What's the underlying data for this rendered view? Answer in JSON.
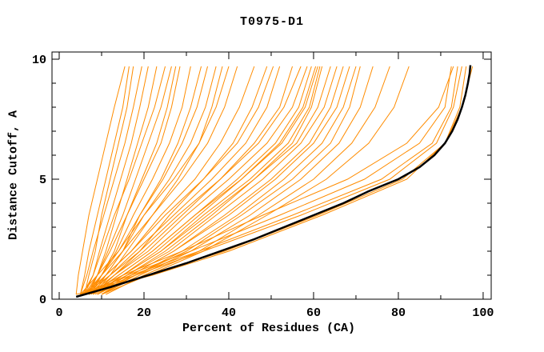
{
  "chart_data": {
    "type": "line",
    "title": "T0975-D1",
    "xlabel": "Percent of Residues (CA)",
    "ylabel": "Distance Cutoff, A",
    "xlim": [
      -1.7,
      101.9
    ],
    "ylim": [
      0,
      10.3
    ],
    "grid": false,
    "legend": false,
    "xticks": {
      "major": [
        0,
        20,
        40,
        60,
        80,
        100
      ],
      "minor": [
        10,
        30,
        50,
        70,
        90
      ]
    },
    "yticks": {
      "major": [
        0,
        5,
        10
      ],
      "minor": [
        1,
        2,
        3,
        4,
        6,
        7,
        8,
        9
      ]
    },
    "colors": {
      "models": "#ff8c00",
      "best_model": "#000000"
    },
    "best_model_points": [
      [
        4,
        0.1
      ],
      [
        12,
        0.5
      ],
      [
        21,
        1
      ],
      [
        30,
        1.5
      ],
      [
        38,
        2
      ],
      [
        46,
        2.5
      ],
      [
        53,
        3
      ],
      [
        60,
        3.5
      ],
      [
        67,
        4
      ],
      [
        73,
        4.5
      ],
      [
        80,
        5
      ],
      [
        85,
        5.5
      ],
      [
        88.5,
        6
      ],
      [
        91,
        6.5
      ],
      [
        92.7,
        7
      ],
      [
        94,
        7.5
      ],
      [
        95,
        8
      ],
      [
        95.8,
        8.5
      ],
      [
        96.4,
        9
      ],
      [
        96.8,
        9.4
      ],
      [
        97,
        9.75
      ]
    ],
    "dist_grid": [
      0.2,
      1,
      2,
      3.5,
      5,
      6.5,
      8,
      9.7
    ],
    "models_pct": [
      [
        4,
        4.5,
        5.5,
        7,
        9,
        11,
        13,
        15.5
      ],
      [
        5,
        6,
        7,
        9,
        11,
        13,
        15,
        16.5
      ],
      [
        6,
        7,
        8.5,
        10,
        12,
        14,
        16,
        17.5
      ],
      [
        5,
        6.5,
        8,
        10.5,
        13,
        15.5,
        17.5,
        19.5
      ],
      [
        6,
        8,
        9.5,
        12,
        14.5,
        17,
        19,
        21
      ],
      [
        7,
        9,
        11,
        13.5,
        16,
        18.5,
        21,
        23
      ],
      [
        5.5,
        8,
        10,
        13,
        16.5,
        19.5,
        22.5,
        25
      ],
      [
        6.5,
        9,
        11.5,
        15,
        18,
        21,
        24,
        26.5
      ],
      [
        7.5,
        10,
        13,
        16,
        19.5,
        23,
        25.5,
        27.5
      ],
      [
        6,
        9,
        12,
        16,
        20,
        24,
        26.5,
        28.5
      ],
      [
        7,
        10,
        13.5,
        17.5,
        22,
        26,
        29,
        31
      ],
      [
        8,
        11,
        15,
        19,
        24,
        28,
        31,
        33.5
      ],
      [
        6.5,
        10,
        14,
        19,
        24.5,
        29,
        32.5,
        35
      ],
      [
        7,
        11,
        15,
        20,
        26,
        31,
        34.5,
        37
      ],
      [
        8,
        12,
        16,
        22,
        28,
        33,
        36,
        38.5
      ],
      [
        5,
        9,
        14,
        20,
        27,
        33,
        37,
        40
      ],
      [
        6,
        10,
        15,
        22,
        29,
        35,
        39,
        42
      ],
      [
        7,
        11,
        17,
        24,
        32,
        38,
        42.5,
        46
      ],
      [
        8,
        13,
        19,
        26,
        34,
        41,
        45.5,
        49
      ],
      [
        6,
        11,
        17,
        25,
        34,
        42,
        47,
        50.5
      ],
      [
        7,
        12,
        18,
        27,
        36,
        44,
        49,
        52
      ],
      [
        8,
        13,
        20,
        29,
        38,
        46,
        52,
        55
      ],
      [
        6,
        12,
        19,
        28,
        38,
        47,
        53,
        57
      ],
      [
        7,
        13,
        21,
        30,
        40,
        49,
        55,
        58.5
      ],
      [
        8,
        14,
        22,
        32,
        42,
        51,
        56.5,
        59.5
      ],
      [
        9,
        15,
        23,
        33,
        43,
        52,
        57.5,
        60.5
      ],
      [
        7.5,
        14,
        22,
        32,
        43,
        52.5,
        58,
        61
      ],
      [
        8.5,
        15,
        24,
        34,
        45,
        54,
        59,
        61.5
      ],
      [
        9,
        16,
        25,
        36,
        46,
        55,
        59.5,
        62
      ],
      [
        8,
        15,
        24,
        35,
        46,
        56,
        61,
        64
      ],
      [
        9,
        16,
        26,
        37,
        48,
        57,
        62.5,
        65.5
      ],
      [
        10,
        17,
        27,
        39,
        50,
        59,
        64,
        67
      ],
      [
        9,
        17,
        27,
        40,
        51,
        60,
        65.5,
        68.5
      ],
      [
        10,
        18,
        29,
        42,
        53,
        62,
        67,
        70
      ],
      [
        9,
        18,
        30,
        43,
        55,
        64,
        68.5,
        71
      ],
      [
        10,
        19,
        31,
        45,
        57,
        66,
        71,
        74
      ],
      [
        11,
        20,
        33,
        47,
        60,
        69,
        74.5,
        78
      ],
      [
        10,
        21,
        34,
        49,
        63,
        73,
        79,
        82.5
      ],
      [
        7,
        16,
        31,
        52,
        72,
        85,
        91,
        92.5
      ],
      [
        5,
        17,
        33,
        55,
        76,
        88,
        92.5,
        94
      ],
      [
        6,
        18,
        34,
        57,
        78,
        89,
        93,
        95
      ],
      [
        4,
        22,
        40,
        62,
        82,
        91,
        94.5,
        96
      ],
      [
        5,
        21,
        39,
        61,
        81,
        91,
        95,
        97.5
      ],
      [
        6,
        15,
        29,
        48,
        68,
        82,
        89.5,
        93
      ]
    ]
  }
}
